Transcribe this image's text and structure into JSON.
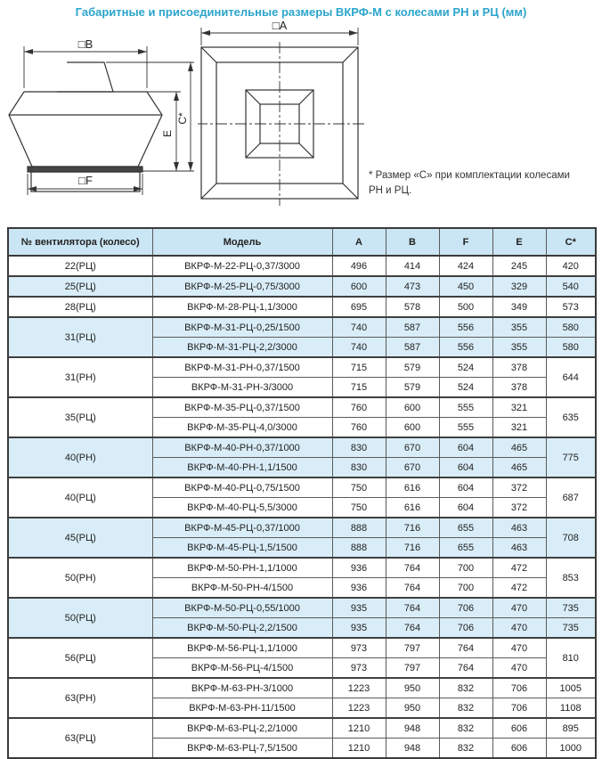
{
  "page": {
    "title": "Габаритные и присоединительные размеры ВКРФ-М с колесами РН и РЦ (мм)"
  },
  "figures": {
    "side_view": {
      "dim_b": "□B",
      "dim_c": "C*",
      "dim_e": "E",
      "dim_f": "□F"
    },
    "top_view": {
      "dim_a": "□A"
    },
    "note_line1": "* Размер «С» при комплектации колесами",
    "note_line2": "РН и РЦ."
  },
  "colors": {
    "accent": "#2ba5cb",
    "header_bg": "#cae5f3",
    "shaded_row_bg": "#d9edf8",
    "border_dark": "#3a3a3a",
    "line": "#333333"
  },
  "table": {
    "headers": [
      "№ вентилятора (колесо)",
      "Модель",
      "A",
      "B",
      "F",
      "E",
      "C*"
    ],
    "groups": [
      {
        "wheel": "22(РЦ)",
        "shaded": false,
        "rows": [
          {
            "model": "ВКРФ-М-22-РЦ-0,37/3000",
            "A": "496",
            "B": "414",
            "F": "424",
            "E": "245",
            "C": "420"
          }
        ]
      },
      {
        "wheel": "25(РЦ)",
        "shaded": true,
        "rows": [
          {
            "model": "ВКРФ-М-25-РЦ-0,75/3000",
            "A": "600",
            "B": "473",
            "F": "450",
            "E": "329",
            "C": "540"
          }
        ]
      },
      {
        "wheel": "28(РЦ)",
        "shaded": false,
        "rows": [
          {
            "model": "ВКРФ-М-28-РЦ-1,1/3000",
            "A": "695",
            "B": "578",
            "F": "500",
            "E": "349",
            "C": "573"
          }
        ]
      },
      {
        "wheel": "31(РЦ)",
        "shaded": true,
        "rows": [
          {
            "model": "ВКРФ-М-31-РЦ-0,25/1500",
            "A": "740",
            "B": "587",
            "F": "556",
            "E": "355",
            "C": "580"
          },
          {
            "model": "ВКРФ-М-31-РЦ-2,2/3000",
            "A": "740",
            "B": "587",
            "F": "556",
            "E": "355",
            "C": "580"
          }
        ]
      },
      {
        "wheel": "31(РН)",
        "shaded": false,
        "c_merged": "644",
        "rows": [
          {
            "model": "ВКРФ-М-31-РН-0,37/1500",
            "A": "715",
            "B": "579",
            "F": "524",
            "E": "378"
          },
          {
            "model": "ВКРФ-М-31-РН-3/3000",
            "A": "715",
            "B": "579",
            "F": "524",
            "E": "378"
          }
        ]
      },
      {
        "wheel": "35(РЦ)",
        "shaded": false,
        "c_merged": "635",
        "rows": [
          {
            "model": "ВКРФ-М-35-РЦ-0,37/1500",
            "A": "760",
            "B": "600",
            "F": "555",
            "E": "321"
          },
          {
            "model": "ВКРФ-М-35-РЦ-4,0/3000",
            "A": "760",
            "B": "600",
            "F": "555",
            "E": "321"
          }
        ]
      },
      {
        "wheel": "40(РН)",
        "shaded": true,
        "c_merged": "775",
        "rows": [
          {
            "model": "ВКРФ-М-40-РН-0,37/1000",
            "A": "830",
            "B": "670",
            "F": "604",
            "E": "465"
          },
          {
            "model": "ВКРФ-М-40-РН-1,1/1500",
            "A": "830",
            "B": "670",
            "F": "604",
            "E": "465"
          }
        ]
      },
      {
        "wheel": "40(РЦ)",
        "shaded": false,
        "c_merged": "687",
        "rows": [
          {
            "model": "ВКРФ-М-40-РЦ-0,75/1500",
            "A": "750",
            "B": "616",
            "F": "604",
            "E": "372"
          },
          {
            "model": "ВКРФ-М-40-РЦ-5,5/3000",
            "A": "750",
            "B": "616",
            "F": "604",
            "E": "372"
          }
        ]
      },
      {
        "wheel": "45(РЦ)",
        "shaded": true,
        "c_merged": "708",
        "rows": [
          {
            "model": "ВКРФ-М-45-РЦ-0,37/1000",
            "A": "888",
            "B": "716",
            "F": "655",
            "E": "463"
          },
          {
            "model": "ВКРФ-М-45-РЦ-1,5/1500",
            "A": "888",
            "B": "716",
            "F": "655",
            "E": "463"
          }
        ]
      },
      {
        "wheel": "50(РН)",
        "shaded": false,
        "c_merged": "853",
        "rows": [
          {
            "model": "ВКРФ-М-50-РН-1,1/1000",
            "A": "936",
            "B": "764",
            "F": "700",
            "E": "472"
          },
          {
            "model": "ВКРФ-М-50-РН-4/1500",
            "A": "936",
            "B": "764",
            "F": "700",
            "E": "472"
          }
        ]
      },
      {
        "wheel": "50(РЦ)",
        "shaded": true,
        "rows": [
          {
            "model": "ВКРФ-М-50-РЦ-0,55/1000",
            "A": "935",
            "B": "764",
            "F": "706",
            "E": "470",
            "C": "735"
          },
          {
            "model": "ВКРФ-М-50-РЦ-2,2/1500",
            "A": "935",
            "B": "764",
            "F": "706",
            "E": "470",
            "C": "735"
          }
        ]
      },
      {
        "wheel": "56(РЦ)",
        "shaded": false,
        "c_merged": "810",
        "rows": [
          {
            "model": "ВКРФ-М-56-РЦ-1,1/1000",
            "A": "973",
            "B": "797",
            "F": "764",
            "E": "470"
          },
          {
            "model": "ВКРФ-М-56-РЦ-4/1500",
            "A": "973",
            "B": "797",
            "F": "764",
            "E": "470"
          }
        ]
      },
      {
        "wheel": "63(РН)",
        "shaded": false,
        "rows": [
          {
            "model": "ВКРФ-М-63-РН-3/1000",
            "A": "1223",
            "B": "950",
            "F": "832",
            "E": "706",
            "C": "1005"
          },
          {
            "model": "ВКРФ-М-63-РН-11/1500",
            "A": "1223",
            "B": "950",
            "F": "832",
            "E": "706",
            "C": "1108"
          }
        ]
      },
      {
        "wheel": "63(РЦ)",
        "shaded": false,
        "rows": [
          {
            "model": "ВКРФ-М-63-РЦ-2,2/1000",
            "A": "1210",
            "B": "948",
            "F": "832",
            "E": "606",
            "C": "895"
          },
          {
            "model": "ВКРФ-М-63-РЦ-7,5/1500",
            "A": "1210",
            "B": "948",
            "F": "832",
            "E": "606",
            "C": "1000"
          }
        ]
      }
    ]
  }
}
